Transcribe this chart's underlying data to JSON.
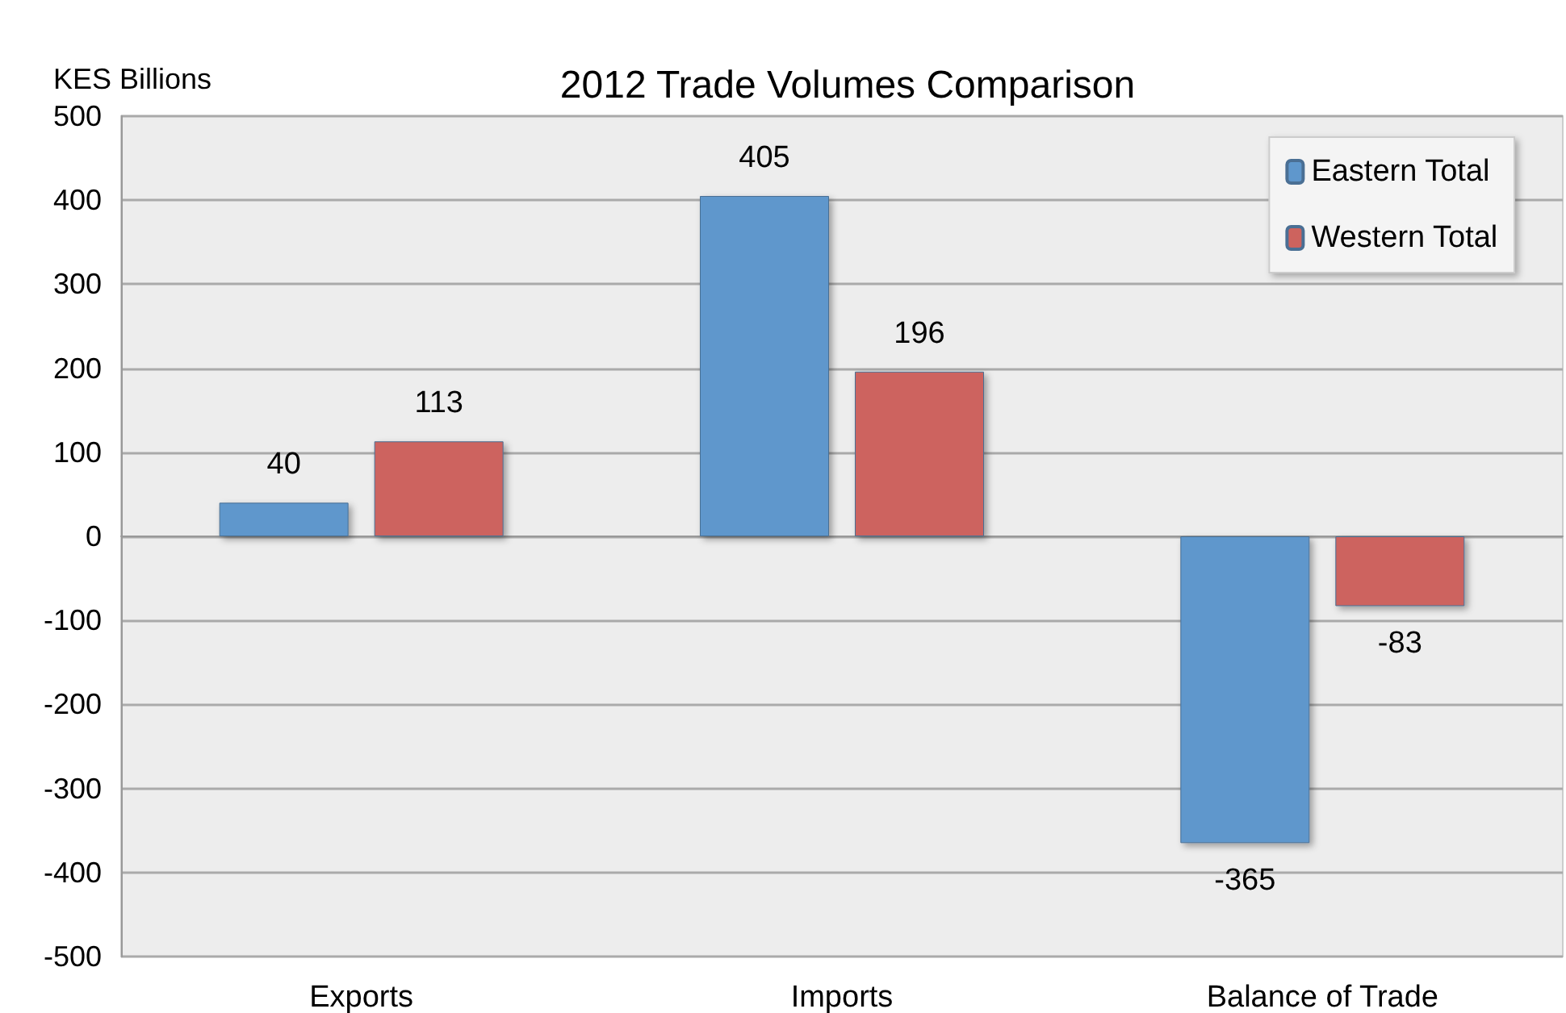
{
  "chart_data": {
    "type": "bar",
    "title": "2012 Trade Volumes Comparison",
    "ylabel": "KES Billions",
    "categories": [
      "Exports",
      "Imports",
      "Balance of Trade"
    ],
    "series": [
      {
        "name": "Eastern Total",
        "color": "#5f97cc",
        "values": [
          40,
          405,
          -365
        ]
      },
      {
        "name": "Western Total",
        "color": "#cd635e",
        "values": [
          113,
          196,
          -83
        ]
      }
    ],
    "ylim": [
      -500,
      500
    ],
    "yticks": [
      -500,
      -400,
      -300,
      -200,
      -100,
      0,
      100,
      200,
      300,
      400,
      500
    ],
    "grid": "y",
    "legend": "top right",
    "data_labels": true
  }
}
